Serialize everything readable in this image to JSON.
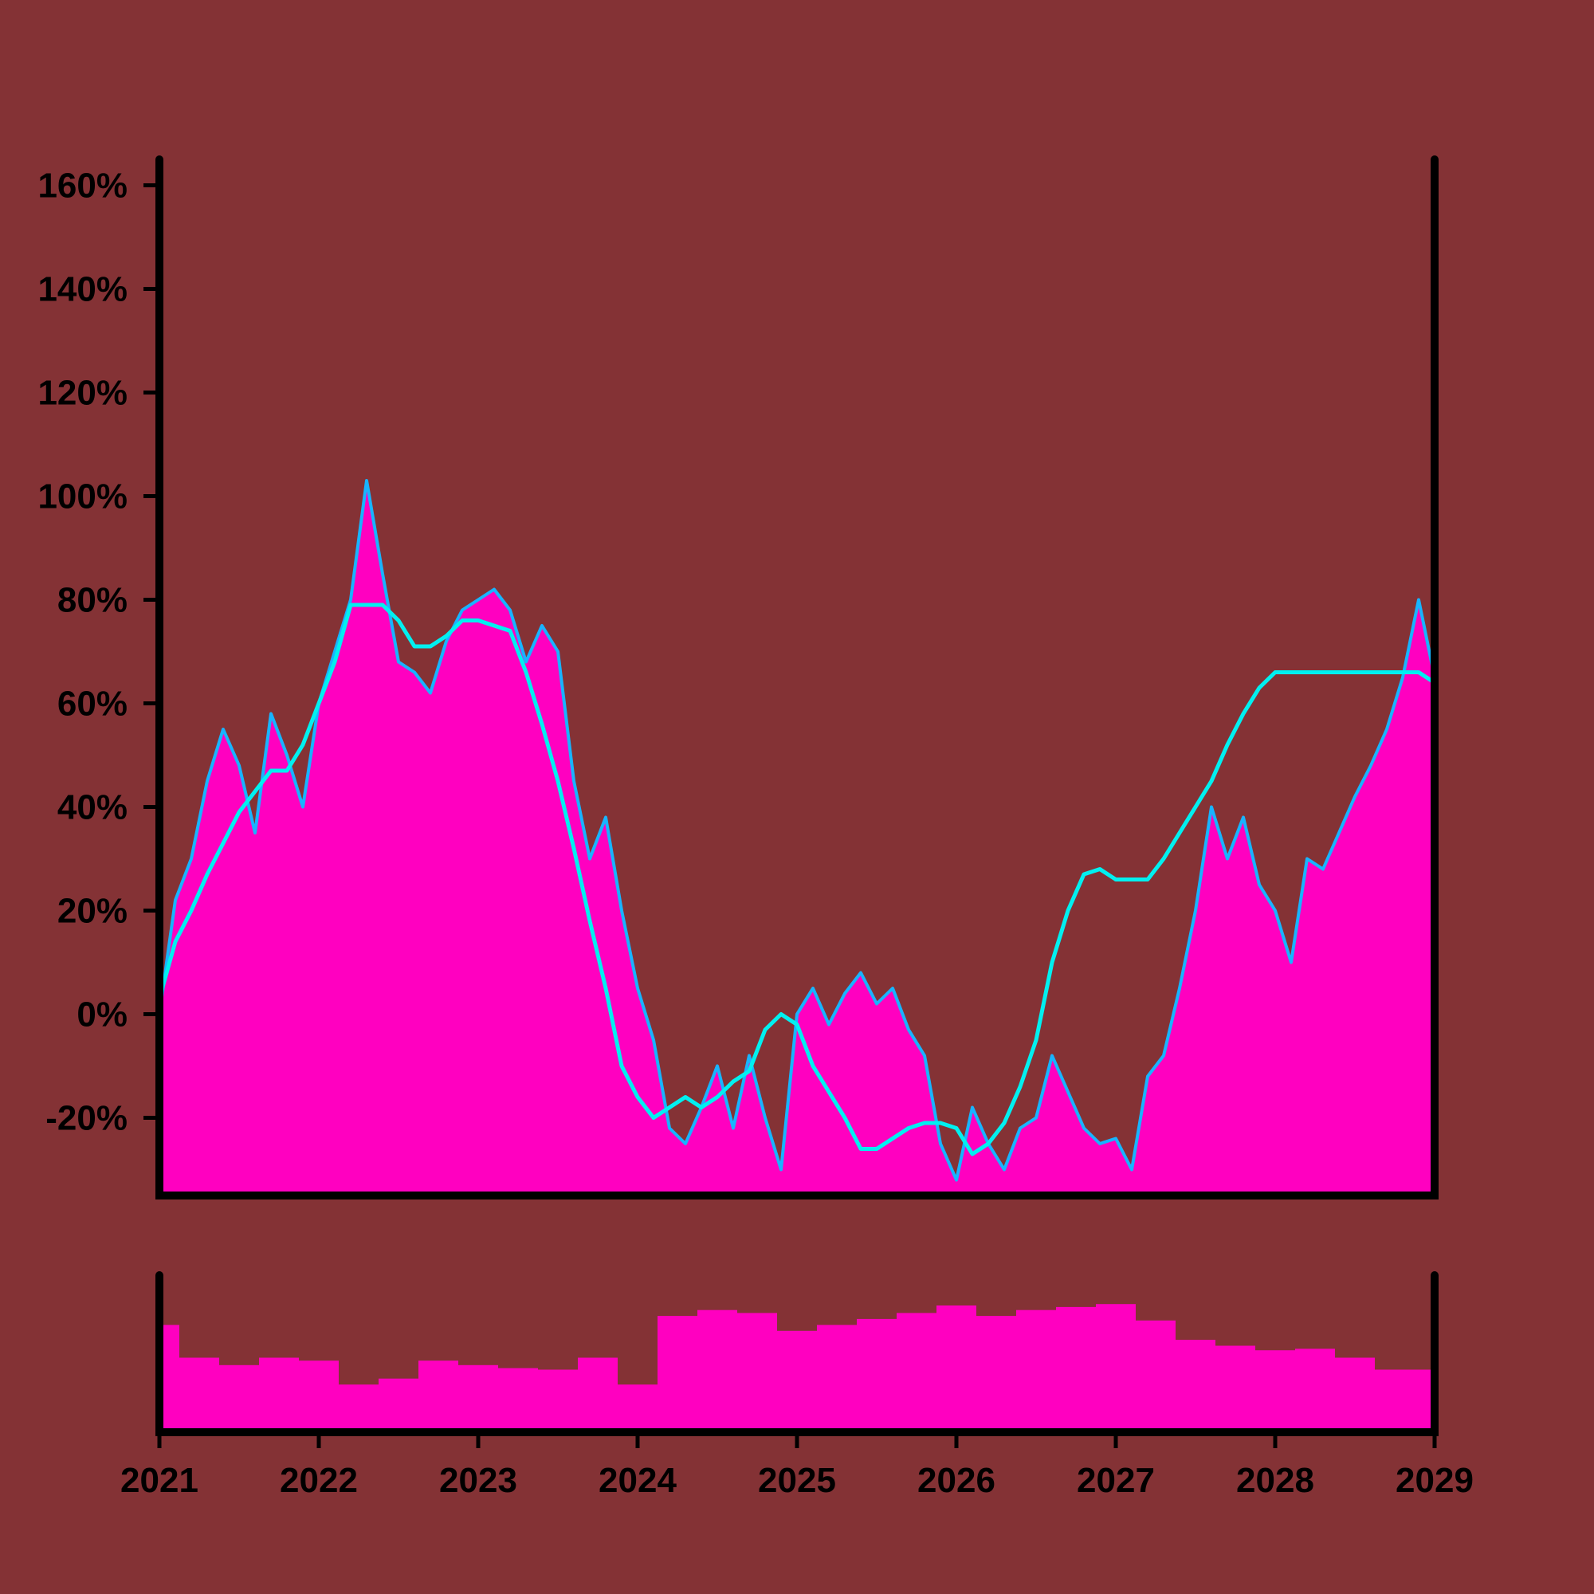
{
  "colors": {
    "background": "#843235",
    "area_fill": "#ff00c0",
    "price_line": "#18b4ff",
    "moving_average": "#00f0f0",
    "volume_fill": "#ff00c0",
    "axis": "#000000"
  },
  "chart_data": [
    {
      "type": "area",
      "panel": "main",
      "y_axis": {
        "min": -35,
        "max": 165,
        "ticks": [
          -20,
          0,
          20,
          40,
          60,
          80,
          100,
          120,
          140,
          160
        ],
        "tick_labels": [
          "-20%",
          "0%",
          "20%",
          "40%",
          "60%",
          "80%",
          "100%",
          "120%",
          "140%",
          "160%"
        ],
        "format": "percent"
      },
      "x_axis": {
        "min": 2021.0,
        "max": 2029.0,
        "ticks": [
          2021,
          2022,
          2023,
          2024,
          2025,
          2026,
          2027,
          2028,
          2029
        ],
        "tick_labels": [
          "2021",
          "2022",
          "2023",
          "2024",
          "2025",
          "2026",
          "2027",
          "2028",
          "2029"
        ]
      },
      "grid": false,
      "series": [
        {
          "role": "price",
          "style": "area+line",
          "x": [
            2021.0,
            2021.1,
            2021.2,
            2021.3,
            2021.4,
            2021.5,
            2021.6,
            2021.7,
            2021.8,
            2021.9,
            2022.0,
            2022.1,
            2022.2,
            2022.3,
            2022.4,
            2022.5,
            2022.6,
            2022.7,
            2022.8,
            2022.9,
            2023.0,
            2023.1,
            2023.2,
            2023.3,
            2023.4,
            2023.5,
            2023.6,
            2023.7,
            2023.8,
            2023.9,
            2024.0,
            2024.1,
            2024.2,
            2024.3,
            2024.4,
            2024.5,
            2024.6,
            2024.7,
            2024.8,
            2024.9,
            2025.0,
            2025.1,
            2025.2,
            2025.3,
            2025.4,
            2025.5,
            2025.6,
            2025.7,
            2025.8,
            2025.9,
            2026.0,
            2026.1,
            2026.2,
            2026.3,
            2026.4,
            2026.5,
            2026.6,
            2026.7,
            2026.8,
            2026.9,
            2027.0,
            2027.1,
            2027.2,
            2027.3,
            2027.4,
            2027.5,
            2027.6,
            2027.7,
            2027.8,
            2027.9,
            2028.0,
            2028.1,
            2028.2,
            2028.3,
            2028.4,
            2028.5,
            2028.6,
            2028.7,
            2028.8,
            2028.9,
            2029.0
          ],
          "values": [
            0,
            22,
            30,
            45,
            55,
            48,
            35,
            58,
            50,
            40,
            60,
            70,
            80,
            103,
            85,
            68,
            66,
            62,
            72,
            78,
            80,
            82,
            78,
            68,
            75,
            70,
            45,
            30,
            38,
            20,
            5,
            -5,
            -22,
            -25,
            -18,
            -10,
            -22,
            -8,
            -20,
            -30,
            0,
            5,
            -2,
            4,
            8,
            2,
            5,
            -3,
            -8,
            -25,
            -32,
            -18,
            -25,
            -30,
            -22,
            -20,
            -8,
            -15,
            -22,
            -25,
            -24,
            -30,
            -12,
            -8,
            5,
            20,
            40,
            30,
            38,
            25,
            20,
            10,
            30,
            28,
            35,
            42,
            48,
            55,
            65,
            80,
            65
          ]
        },
        {
          "role": "moving_average",
          "style": "line",
          "x": [
            2021.0,
            2021.1,
            2021.2,
            2021.3,
            2021.4,
            2021.5,
            2021.6,
            2021.7,
            2021.8,
            2021.9,
            2022.0,
            2022.1,
            2022.2,
            2022.3,
            2022.4,
            2022.5,
            2022.6,
            2022.7,
            2022.8,
            2022.9,
            2023.0,
            2023.1,
            2023.2,
            2023.3,
            2023.4,
            2023.5,
            2023.6,
            2023.7,
            2023.8,
            2023.9,
            2024.0,
            2024.1,
            2024.2,
            2024.3,
            2024.4,
            2024.5,
            2024.6,
            2024.7,
            2024.8,
            2024.9,
            2025.0,
            2025.1,
            2025.2,
            2025.3,
            2025.4,
            2025.5,
            2025.6,
            2025.7,
            2025.8,
            2025.9,
            2026.0,
            2026.1,
            2026.2,
            2026.3,
            2026.4,
            2026.5,
            2026.6,
            2026.7,
            2026.8,
            2026.9,
            2027.0,
            2027.1,
            2027.2,
            2027.3,
            2027.4,
            2027.5,
            2027.6,
            2027.7,
            2027.8,
            2027.9,
            2028.0,
            2028.1,
            2028.2,
            2028.3,
            2028.4,
            2028.5,
            2028.6,
            2028.7,
            2028.8,
            2028.9,
            2029.0
          ],
          "values": [
            3,
            14,
            20,
            27,
            33,
            39,
            43,
            47,
            47,
            52,
            60,
            68,
            79,
            79,
            79,
            76,
            71,
            71,
            73,
            76,
            76,
            75,
            74,
            66,
            56,
            45,
            32,
            18,
            5,
            -10,
            -16,
            -20,
            -18,
            -16,
            -18,
            -16,
            -13,
            -11,
            -3,
            0,
            -2,
            -10,
            -15,
            -20,
            -26,
            -26,
            -24,
            -22,
            -21,
            -21,
            -22,
            -27,
            -25,
            -21,
            -14,
            -5,
            10,
            20,
            27,
            28,
            26,
            26,
            26,
            30,
            35,
            40,
            45,
            52,
            58,
            63,
            66,
            66,
            66,
            66,
            66,
            66,
            66,
            66,
            66,
            66,
            64
          ]
        }
      ]
    },
    {
      "type": "bar",
      "panel": "volume",
      "series": [
        {
          "role": "volume",
          "x": [
            2021.0,
            2021.25,
            2021.5,
            2021.75,
            2022.0,
            2022.25,
            2022.5,
            2022.75,
            2023.0,
            2023.25,
            2023.5,
            2023.75,
            2024.0,
            2024.25,
            2024.5,
            2024.75,
            2025.0,
            2025.25,
            2025.5,
            2025.75,
            2026.0,
            2026.25,
            2026.5,
            2026.75,
            2027.0,
            2027.25,
            2027.5,
            2027.75,
            2028.0,
            2028.25,
            2028.5,
            2028.75,
            2029.0
          ],
          "values": [
            0.72,
            0.5,
            0.45,
            0.5,
            0.48,
            0.32,
            0.36,
            0.48,
            0.45,
            0.43,
            0.42,
            0.5,
            0.32,
            0.78,
            0.82,
            0.8,
            0.68,
            0.72,
            0.76,
            0.8,
            0.85,
            0.78,
            0.82,
            0.84,
            0.86,
            0.75,
            0.62,
            0.58,
            0.55,
            0.56,
            0.5,
            0.42,
            0.42
          ]
        }
      ]
    }
  ]
}
